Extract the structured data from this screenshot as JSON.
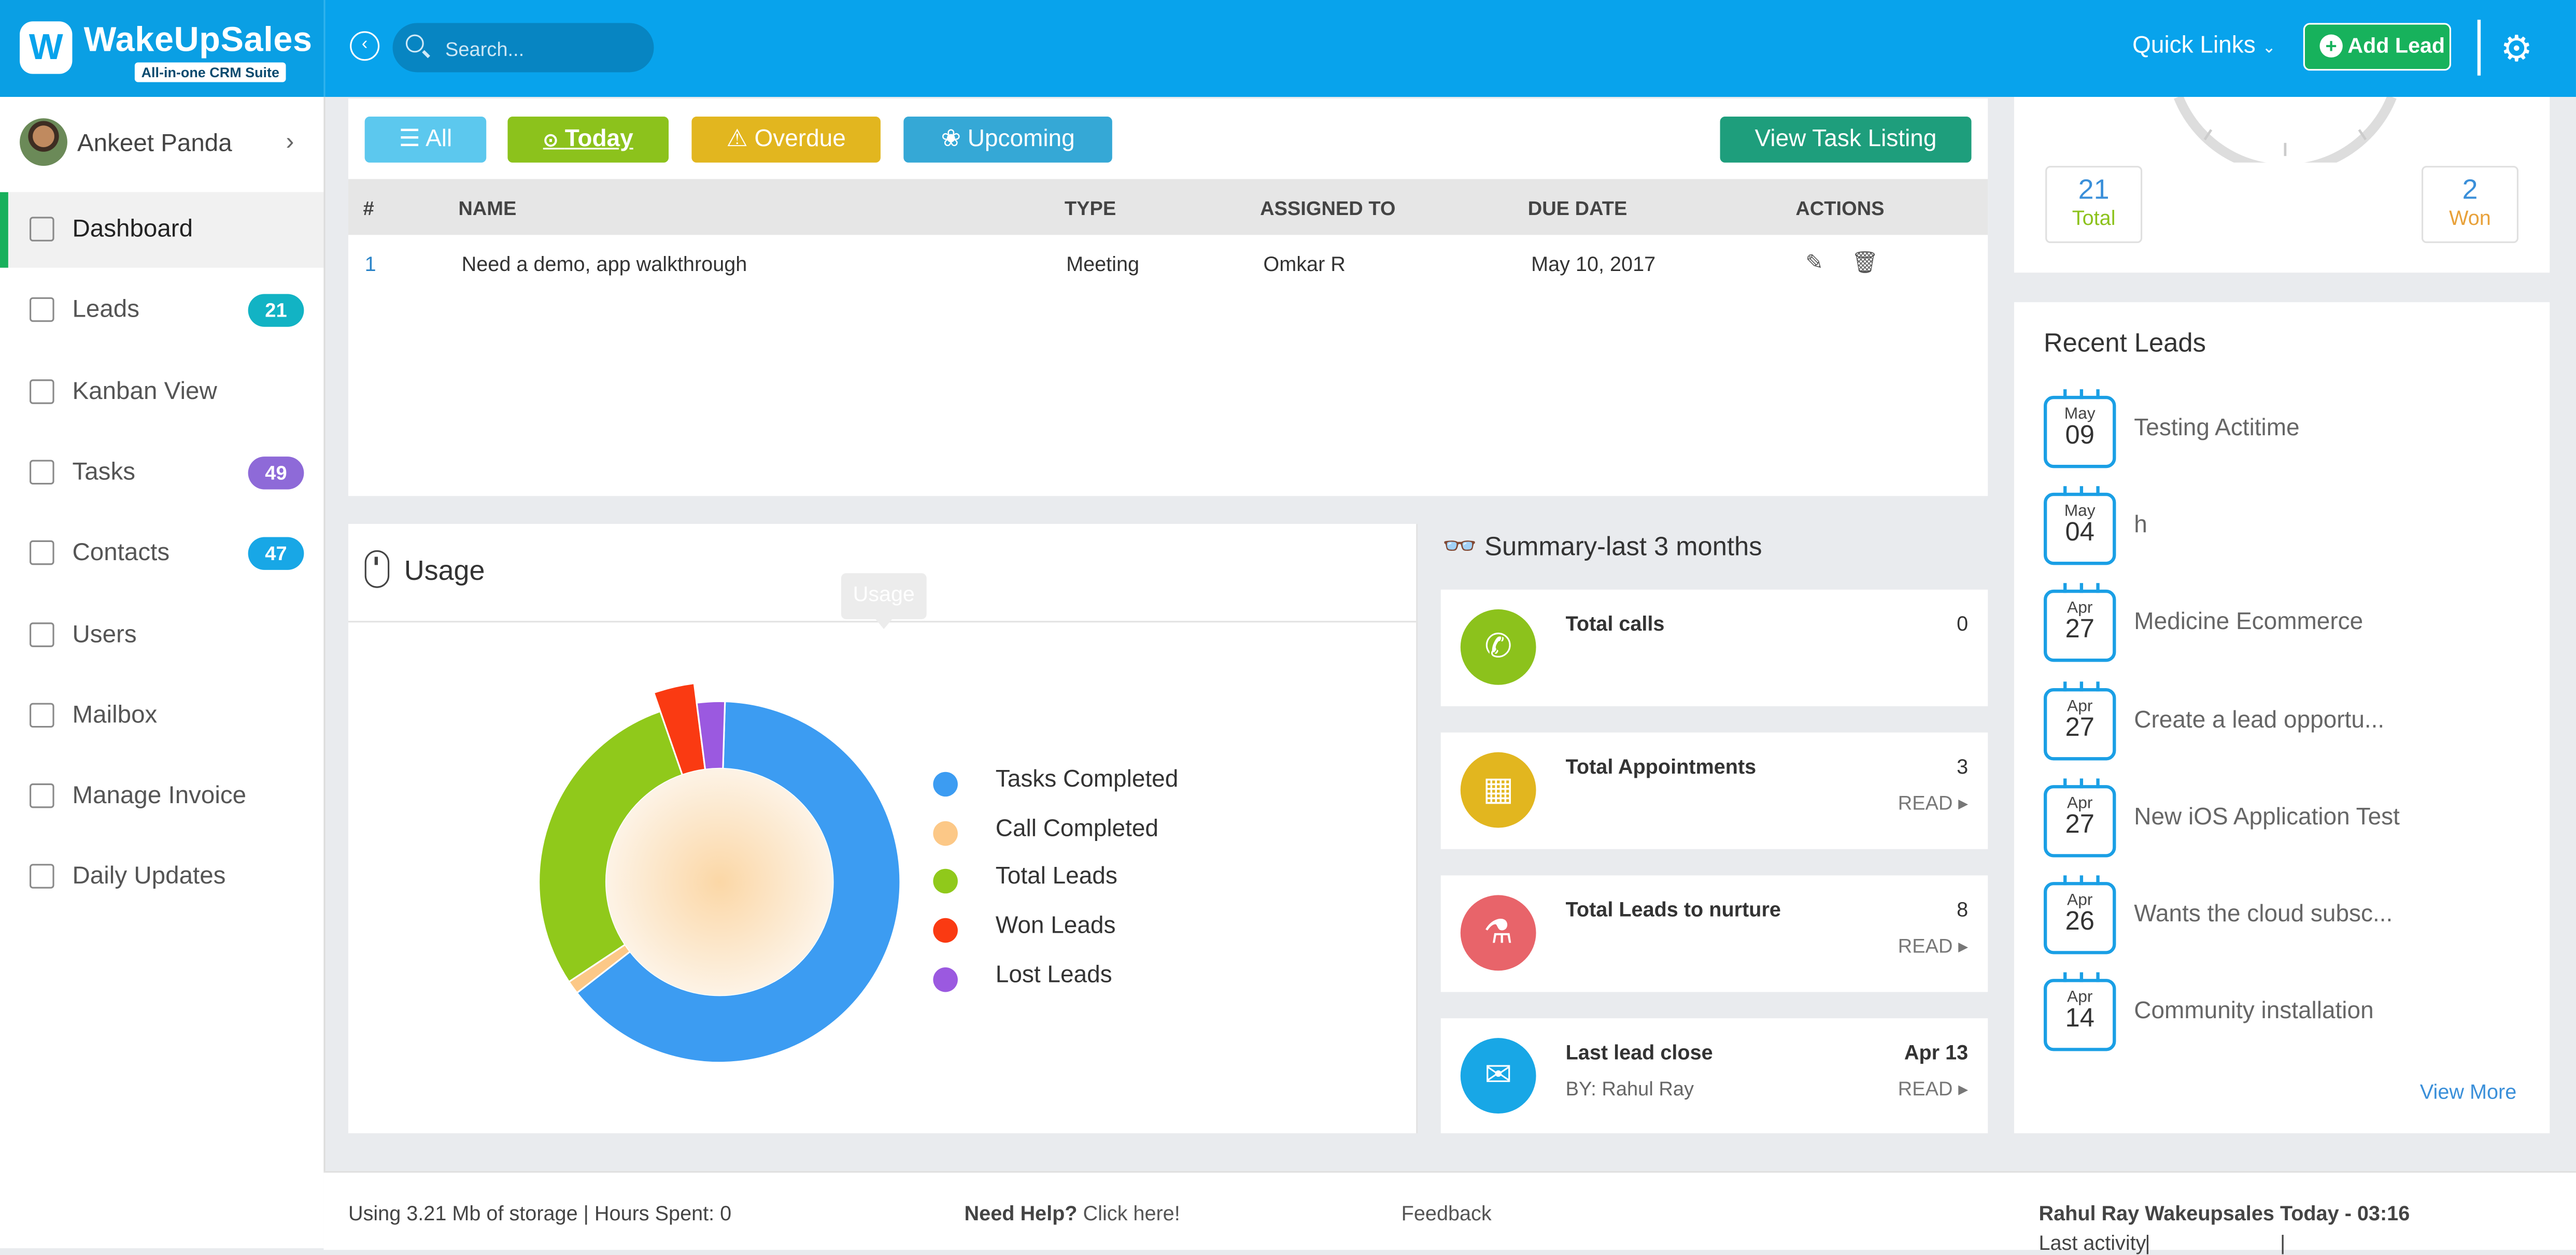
{
  "app": {
    "brand": "WakeUpSales",
    "tagline": "All-in-one CRM Suite"
  },
  "header": {
    "search_placeholder": "Search...",
    "quick_links": "Quick Links",
    "add_lead": "Add Lead",
    "accent": "#08a3ec",
    "add_lead_color": "#17b25c"
  },
  "user": {
    "name": "Ankeet Panda"
  },
  "nav": [
    {
      "label": "Dashboard",
      "icon": "dashboard-icon",
      "active": true
    },
    {
      "label": "Leads",
      "icon": "leads-icon",
      "badge": "21",
      "badge_color": "#12b3c4"
    },
    {
      "label": "Kanban View",
      "icon": "kanban-icon"
    },
    {
      "label": "Tasks",
      "icon": "tasks-icon",
      "badge": "49",
      "badge_color": "#8e6ad8"
    },
    {
      "label": "Contacts",
      "icon": "contacts-icon",
      "badge": "47",
      "badge_color": "#18a7e6"
    },
    {
      "label": "Users",
      "icon": "users-icon"
    },
    {
      "label": "Mailbox",
      "icon": "mailbox-icon"
    },
    {
      "label": "Manage Invoice",
      "icon": "invoice-icon"
    },
    {
      "label": "Daily Updates",
      "icon": "hourglass-icon"
    }
  ],
  "tasks": {
    "filters": [
      {
        "label": "All",
        "icon": "list-icon",
        "color": "#5cc8ee"
      },
      {
        "label": "Today",
        "icon": "check-circle-icon",
        "color": "#8cc21c"
      },
      {
        "label": "Overdue",
        "icon": "warning-icon",
        "color": "#e2b61f"
      },
      {
        "label": "Upcoming",
        "icon": "paw-icon",
        "color": "#35a8d6"
      }
    ],
    "view_listing": "View Task Listing",
    "columns": [
      "#",
      "NAME",
      "TYPE",
      "ASSIGNED TO",
      "DUE DATE",
      "ACTIONS"
    ],
    "rows": [
      {
        "num": "1",
        "name": "Need a demo, app walkthrough",
        "type": "Meeting",
        "assigned": "Omkar R",
        "due": "May 10, 2017"
      }
    ]
  },
  "usage": {
    "title": "Usage",
    "tooltip": "Usage",
    "legend": [
      {
        "label": "Tasks Completed",
        "color": "#3c9cf2"
      },
      {
        "label": "Call Completed",
        "color": "#fcc887"
      },
      {
        "label": "Total Leads",
        "color": "#90c91b"
      },
      {
        "label": "Won Leads",
        "color": "#fa3a12"
      },
      {
        "label": "Lost Leads",
        "color": "#9b59e0"
      }
    ]
  },
  "chart_data": {
    "type": "pie",
    "series": [
      {
        "values": [
          64,
          1.2,
          29,
          3.3,
          2.5
        ]
      }
    ],
    "categories": [
      "Tasks Completed",
      "Call Completed",
      "Total Leads",
      "Won Leads",
      "Lost Leads"
    ],
    "legend": "right"
  },
  "summary": {
    "title": "Summary-last 3 months",
    "cards": [
      {
        "label": "Total calls",
        "value": "0",
        "icon": "phone-icon",
        "color": "#8cc21c"
      },
      {
        "label": "Total Appointments",
        "value": "3",
        "read": "READ",
        "icon": "calendar-icon",
        "color": "#e2b61f"
      },
      {
        "label": "Total Leads to nurture",
        "value": "8",
        "read": "READ",
        "icon": "flask-icon",
        "color": "#e8646a"
      },
      {
        "label": "Last lead close",
        "value": "Apr 13",
        "sub": "BY: Rahul Ray",
        "read": "READ",
        "icon": "inbox-icon",
        "color": "#18a7e6"
      }
    ]
  },
  "stats": {
    "total_num": "21",
    "total_lbl": "Total",
    "won_num": "2",
    "won_lbl": "Won"
  },
  "recent": {
    "title": "Recent Leads",
    "items": [
      {
        "month": "May",
        "day": "09",
        "name": "Testing Actitime"
      },
      {
        "month": "May",
        "day": "04",
        "name": "h"
      },
      {
        "month": "Apr",
        "day": "27",
        "name": "Medicine Ecommerce"
      },
      {
        "month": "Apr",
        "day": "27",
        "name": "Create a lead opportu..."
      },
      {
        "month": "Apr",
        "day": "27",
        "name": "New iOS Application Test"
      },
      {
        "month": "Apr",
        "day": "26",
        "name": "Wants the cloud subsc..."
      },
      {
        "month": "Apr",
        "day": "14",
        "name": "Community installation"
      }
    ],
    "view_more": "View More"
  },
  "footer": {
    "storage": "Using 3.21 Mb of storage | Hours Spent: 0",
    "need_help": "Need Help?",
    "click_here": "Click here!",
    "feedback": "Feedback",
    "last_activity": "Last activity",
    "activity_user": "Rahul Ray",
    "activity_sep": "|",
    "activity_org": "Wakeupsales",
    "activity_time": "Today - 03:16"
  }
}
